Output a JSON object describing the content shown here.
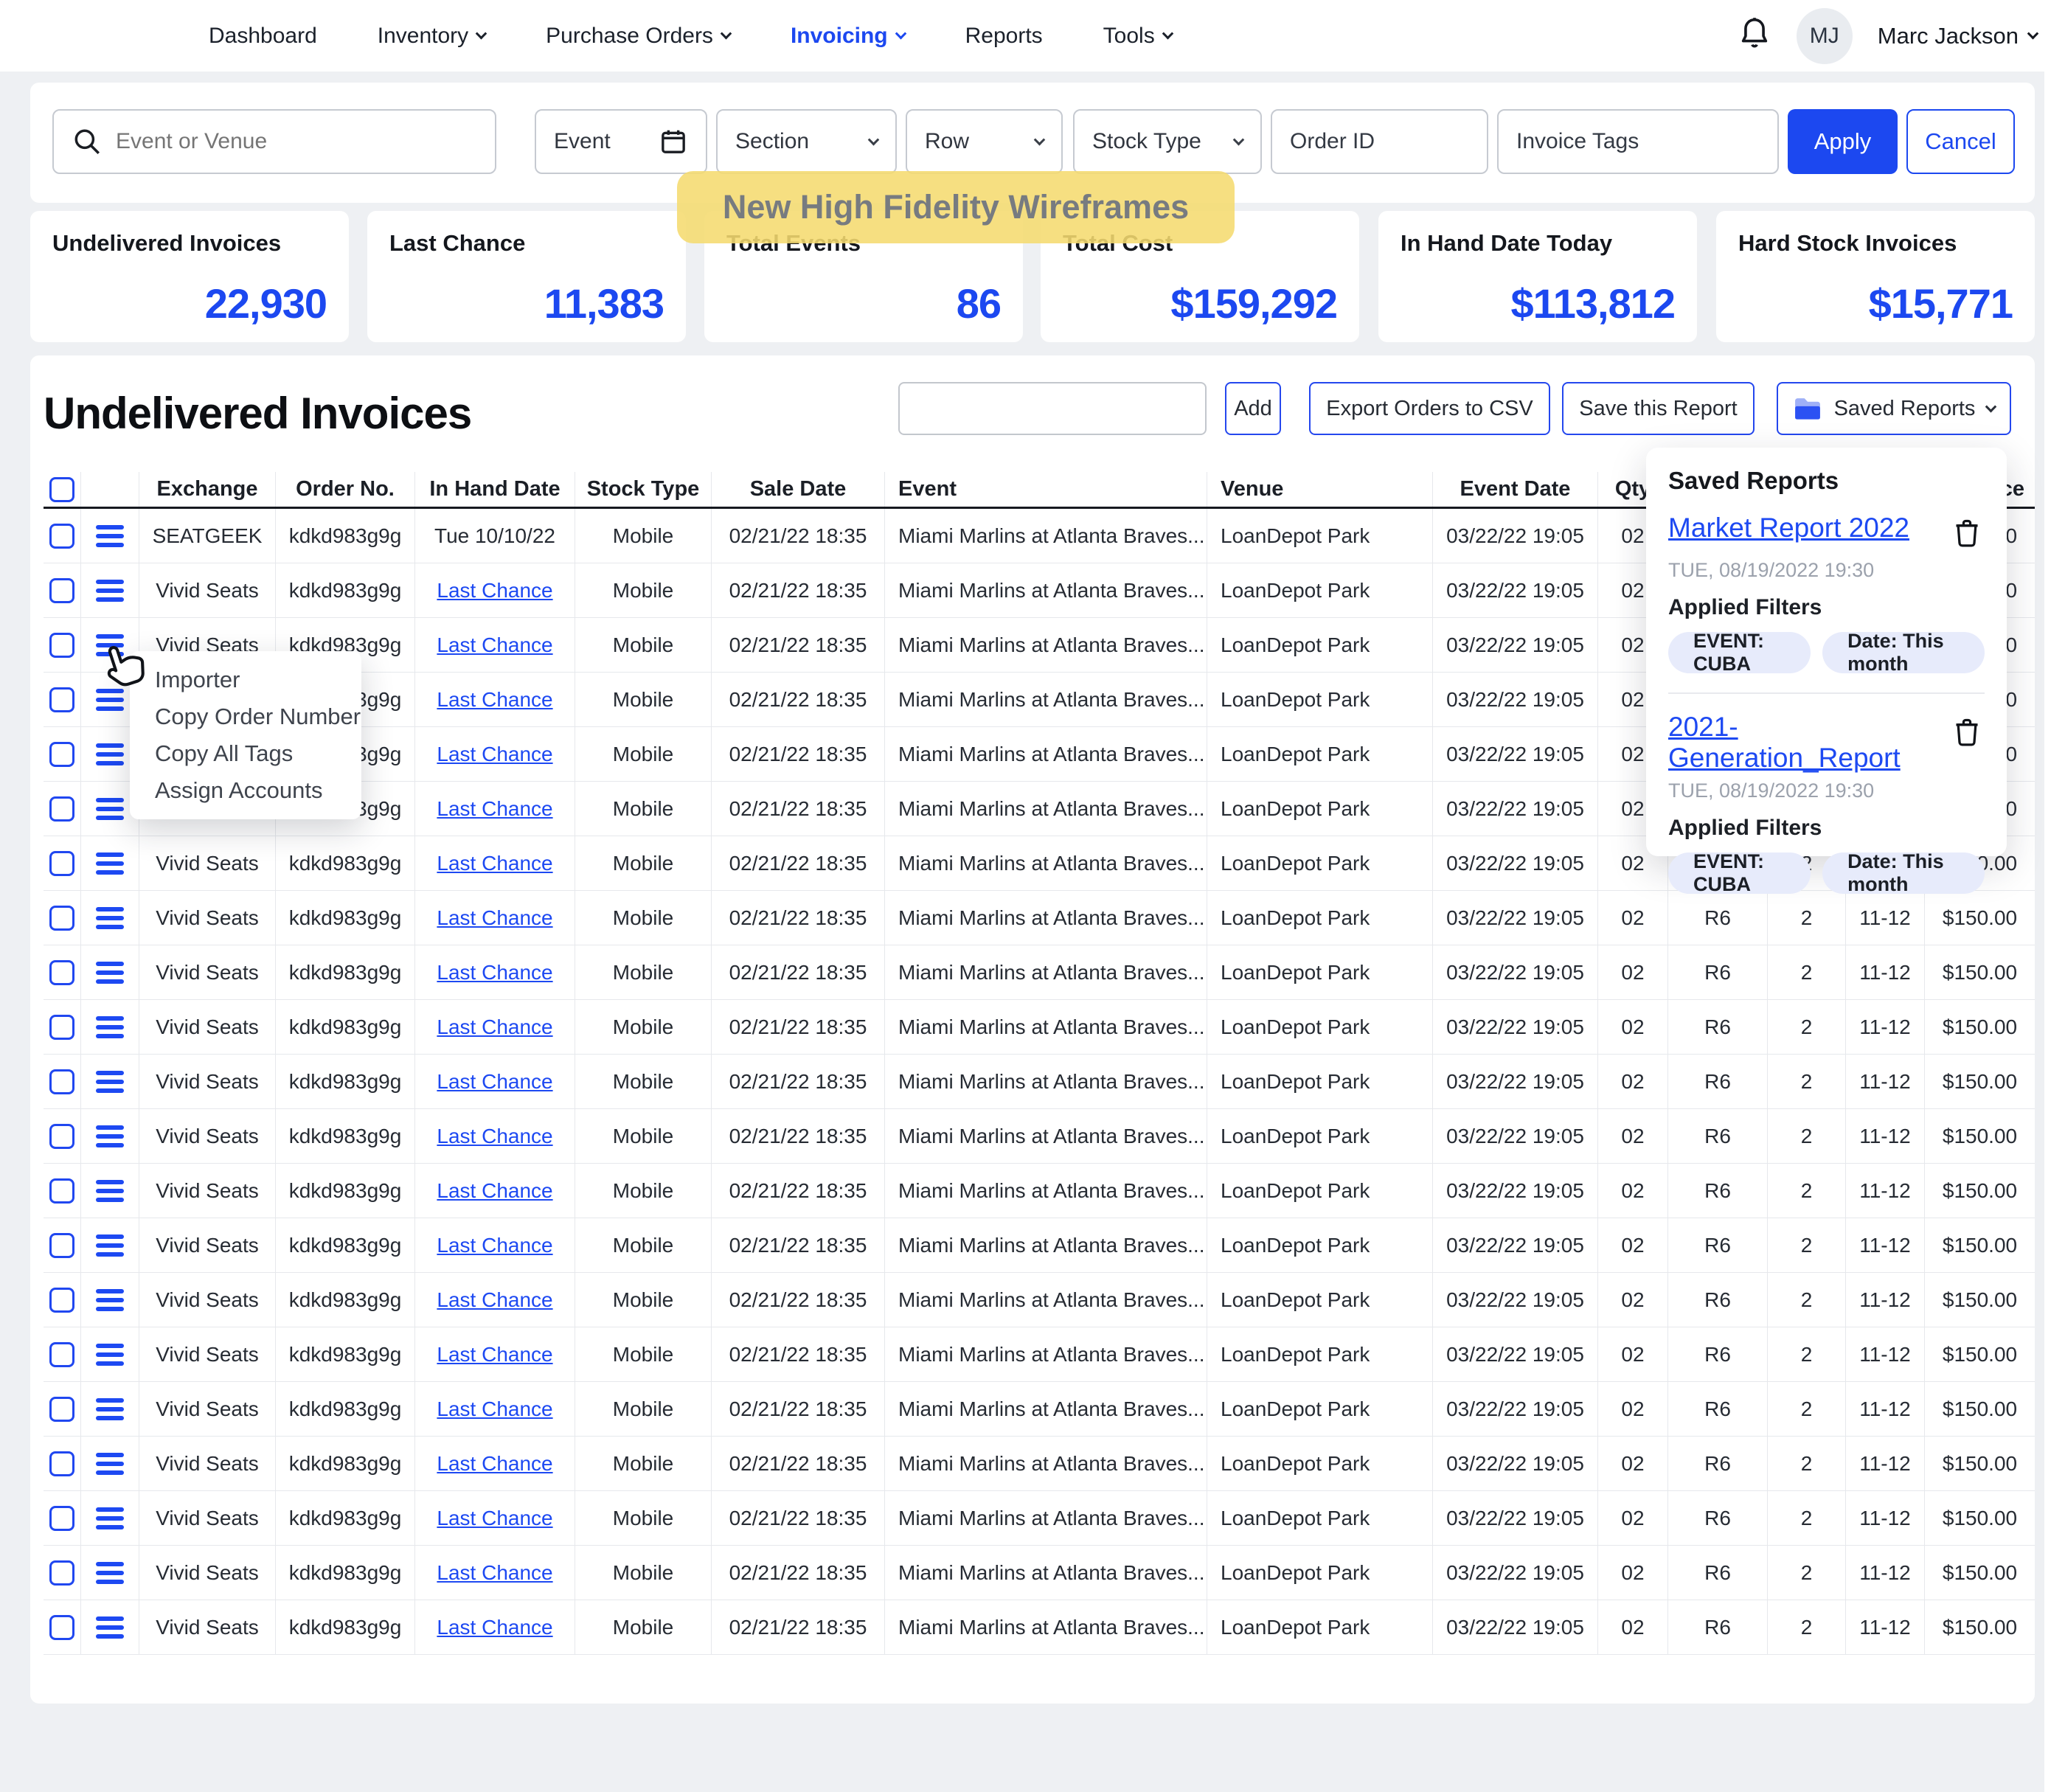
{
  "nav": {
    "items": [
      {
        "label": "Dashboard",
        "chevron": false,
        "active": false
      },
      {
        "label": "Inventory",
        "chevron": true,
        "active": false
      },
      {
        "label": "Purchase Orders",
        "chevron": true,
        "active": false
      },
      {
        "label": "Invoicing",
        "chevron": true,
        "active": true
      },
      {
        "label": "Reports",
        "chevron": false,
        "active": false
      },
      {
        "label": "Tools",
        "chevron": true,
        "active": false
      }
    ],
    "avatar_initials": "MJ",
    "user_name": "Marc Jackson"
  },
  "filters": {
    "search_placeholder": "Event or Venue",
    "event_label": "Event",
    "section_label": "Section",
    "row_label": "Row",
    "stock_type_label": "Stock Type",
    "order_id_placeholder": "Order ID",
    "invoice_tags_placeholder": "Invoice Tags",
    "apply_label": "Apply",
    "cancel_label": "Cancel"
  },
  "annotation": {
    "text": "New High Fidelity Wireframes"
  },
  "stats": [
    {
      "label": "Undelivered Invoices",
      "value": "22,930"
    },
    {
      "label": "Last Chance",
      "value": "11,383"
    },
    {
      "label": "Total Events",
      "value": "86"
    },
    {
      "label": "Total Cost",
      "value": "$159,292"
    },
    {
      "label": "In Hand Date Today",
      "value": "$113,812"
    },
    {
      "label": "Hard Stock Invoices",
      "value": "$15,771"
    }
  ],
  "main": {
    "title": "Undelivered Invoices",
    "toolbar": {
      "search_value": "",
      "add_label": "Add",
      "export_label": "Export Orders to CSV",
      "save_label": "Save this Report",
      "saved_reports_label": "Saved Reports"
    },
    "table": {
      "columns": [
        "",
        "",
        "Exchange",
        "Order No.",
        "In Hand Date",
        "Stock Type",
        "Sale Date",
        "Event",
        "Venue",
        "Event Date",
        "Qty",
        "",
        "",
        "",
        "Price"
      ],
      "rows": [
        {
          "in_hand_link": false,
          "cells": [
            "SEATGEEK",
            "kdkd983g9g",
            "Tue 10/10/22",
            "Mobile",
            "02/21/22 18:35",
            "Miami Marlins at Atlanta Braves...",
            "LoanDepot Park",
            "03/22/22 19:05",
            "02",
            "R6",
            "2",
            "11-12",
            "$150.00"
          ]
        },
        {
          "in_hand_link": true,
          "cells": [
            "Vivid Seats",
            "kdkd983g9g",
            "Last Chance",
            "Mobile",
            "02/21/22 18:35",
            "Miami Marlins at Atlanta Braves...",
            "LoanDepot Park",
            "03/22/22 19:05",
            "02",
            "R6",
            "2",
            "11-12",
            "$150.00"
          ]
        },
        {
          "in_hand_link": true,
          "cells": [
            "Vivid Seats",
            "kdkd983g9g",
            "Last Chance",
            "Mobile",
            "02/21/22 18:35",
            "Miami Marlins at Atlanta Braves...",
            "LoanDepot Park",
            "03/22/22 19:05",
            "02",
            "R6",
            "2",
            "11-12",
            "$150.00"
          ]
        },
        {
          "in_hand_link": true,
          "cells": [
            "Vivid Seats",
            "kdkd983g9g",
            "Last Chance",
            "Mobile",
            "02/21/22 18:35",
            "Miami Marlins at Atlanta Braves...",
            "LoanDepot Park",
            "03/22/22 19:05",
            "02",
            "R6",
            "2",
            "11-12",
            "$150.00"
          ]
        },
        {
          "in_hand_link": true,
          "cells": [
            "Vivid Seats",
            "kdkd983g9g",
            "Last Chance",
            "Mobile",
            "02/21/22 18:35",
            "Miami Marlins at Atlanta Braves...",
            "LoanDepot Park",
            "03/22/22 19:05",
            "02",
            "R6",
            "2",
            "11-12",
            "$150.00"
          ]
        },
        {
          "in_hand_link": true,
          "cells": [
            "Vivid Seats",
            "kdkd983g9g",
            "Last Chance",
            "Mobile",
            "02/21/22 18:35",
            "Miami Marlins at Atlanta Braves...",
            "LoanDepot Park",
            "03/22/22 19:05",
            "02",
            "R6",
            "2",
            "11-12",
            "$150.00"
          ]
        },
        {
          "in_hand_link": true,
          "cells": [
            "Vivid Seats",
            "kdkd983g9g",
            "Last Chance",
            "Mobile",
            "02/21/22 18:35",
            "Miami Marlins at Atlanta Braves...",
            "LoanDepot Park",
            "03/22/22 19:05",
            "02",
            "R6",
            "2",
            "11-12",
            "$150.00"
          ]
        },
        {
          "in_hand_link": true,
          "cells": [
            "Vivid Seats",
            "kdkd983g9g",
            "Last Chance",
            "Mobile",
            "02/21/22 18:35",
            "Miami Marlins at Atlanta Braves...",
            "LoanDepot Park",
            "03/22/22 19:05",
            "02",
            "R6",
            "2",
            "11-12",
            "$150.00"
          ]
        },
        {
          "in_hand_link": true,
          "cells": [
            "Vivid Seats",
            "kdkd983g9g",
            "Last Chance",
            "Mobile",
            "02/21/22 18:35",
            "Miami Marlins at Atlanta Braves...",
            "LoanDepot Park",
            "03/22/22 19:05",
            "02",
            "R6",
            "2",
            "11-12",
            "$150.00"
          ]
        },
        {
          "in_hand_link": true,
          "cells": [
            "Vivid Seats",
            "kdkd983g9g",
            "Last Chance",
            "Mobile",
            "02/21/22 18:35",
            "Miami Marlins at Atlanta Braves...",
            "LoanDepot Park",
            "03/22/22 19:05",
            "02",
            "R6",
            "2",
            "11-12",
            "$150.00"
          ]
        },
        {
          "in_hand_link": true,
          "cells": [
            "Vivid Seats",
            "kdkd983g9g",
            "Last Chance",
            "Mobile",
            "02/21/22 18:35",
            "Miami Marlins at Atlanta Braves...",
            "LoanDepot Park",
            "03/22/22 19:05",
            "02",
            "R6",
            "2",
            "11-12",
            "$150.00"
          ]
        },
        {
          "in_hand_link": true,
          "cells": [
            "Vivid Seats",
            "kdkd983g9g",
            "Last Chance",
            "Mobile",
            "02/21/22 18:35",
            "Miami Marlins at Atlanta Braves...",
            "LoanDepot Park",
            "03/22/22 19:05",
            "02",
            "R6",
            "2",
            "11-12",
            "$150.00"
          ]
        },
        {
          "in_hand_link": true,
          "cells": [
            "Vivid Seats",
            "kdkd983g9g",
            "Last Chance",
            "Mobile",
            "02/21/22 18:35",
            "Miami Marlins at Atlanta Braves...",
            "LoanDepot Park",
            "03/22/22 19:05",
            "02",
            "R6",
            "2",
            "11-12",
            "$150.00"
          ]
        },
        {
          "in_hand_link": true,
          "cells": [
            "Vivid Seats",
            "kdkd983g9g",
            "Last Chance",
            "Mobile",
            "02/21/22 18:35",
            "Miami Marlins at Atlanta Braves...",
            "LoanDepot Park",
            "03/22/22 19:05",
            "02",
            "R6",
            "2",
            "11-12",
            "$150.00"
          ]
        },
        {
          "in_hand_link": true,
          "cells": [
            "Vivid Seats",
            "kdkd983g9g",
            "Last Chance",
            "Mobile",
            "02/21/22 18:35",
            "Miami Marlins at Atlanta Braves...",
            "LoanDepot Park",
            "03/22/22 19:05",
            "02",
            "R6",
            "2",
            "11-12",
            "$150.00"
          ]
        },
        {
          "in_hand_link": true,
          "cells": [
            "Vivid Seats",
            "kdkd983g9g",
            "Last Chance",
            "Mobile",
            "02/21/22 18:35",
            "Miami Marlins at Atlanta Braves...",
            "LoanDepot Park",
            "03/22/22 19:05",
            "02",
            "R6",
            "2",
            "11-12",
            "$150.00"
          ]
        },
        {
          "in_hand_link": true,
          "cells": [
            "Vivid Seats",
            "kdkd983g9g",
            "Last Chance",
            "Mobile",
            "02/21/22 18:35",
            "Miami Marlins at Atlanta Braves...",
            "LoanDepot Park",
            "03/22/22 19:05",
            "02",
            "R6",
            "2",
            "11-12",
            "$150.00"
          ]
        },
        {
          "in_hand_link": true,
          "cells": [
            "Vivid Seats",
            "kdkd983g9g",
            "Last Chance",
            "Mobile",
            "02/21/22 18:35",
            "Miami Marlins at Atlanta Braves...",
            "LoanDepot Park",
            "03/22/22 19:05",
            "02",
            "R6",
            "2",
            "11-12",
            "$150.00"
          ]
        },
        {
          "in_hand_link": true,
          "cells": [
            "Vivid Seats",
            "kdkd983g9g",
            "Last Chance",
            "Mobile",
            "02/21/22 18:35",
            "Miami Marlins at Atlanta Braves...",
            "LoanDepot Park",
            "03/22/22 19:05",
            "02",
            "R6",
            "2",
            "11-12",
            "$150.00"
          ]
        },
        {
          "in_hand_link": true,
          "cells": [
            "Vivid Seats",
            "kdkd983g9g",
            "Last Chance",
            "Mobile",
            "02/21/22 18:35",
            "Miami Marlins at Atlanta Braves...",
            "LoanDepot Park",
            "03/22/22 19:05",
            "02",
            "R6",
            "2",
            "11-12",
            "$150.00"
          ]
        },
        {
          "in_hand_link": true,
          "cells": [
            "Vivid Seats",
            "kdkd983g9g",
            "Last Chance",
            "Mobile",
            "02/21/22 18:35",
            "Miami Marlins at Atlanta Braves...",
            "LoanDepot Park",
            "03/22/22 19:05",
            "02",
            "R6",
            "2",
            "11-12",
            "$150.00"
          ]
        }
      ]
    }
  },
  "context_menu": {
    "items": [
      "Importer",
      "Copy Order Number",
      "Copy All Tags",
      "Assign Accounts"
    ]
  },
  "saved_reports_panel": {
    "title": "Saved Reports",
    "applied_filters_label": "Applied Filters",
    "reports": [
      {
        "name": "Market Report 2022",
        "timestamp": "TUE, 08/19/2022 19:30",
        "filters": [
          "EVENT: CUBA",
          "Date: This month"
        ]
      },
      {
        "name": "2021-Generation_Report",
        "timestamp": "TUE, 08/19/2022 19:30",
        "filters": [
          "EVENT: CUBA",
          "Date: This month"
        ]
      }
    ]
  },
  "colors": {
    "accent_blue": "#1c48f0",
    "page_background": "#eef0f3",
    "annotation_yellow": "#f5db70",
    "pill_background": "#e7ebfb",
    "grid_line": "#e6e8ec"
  }
}
